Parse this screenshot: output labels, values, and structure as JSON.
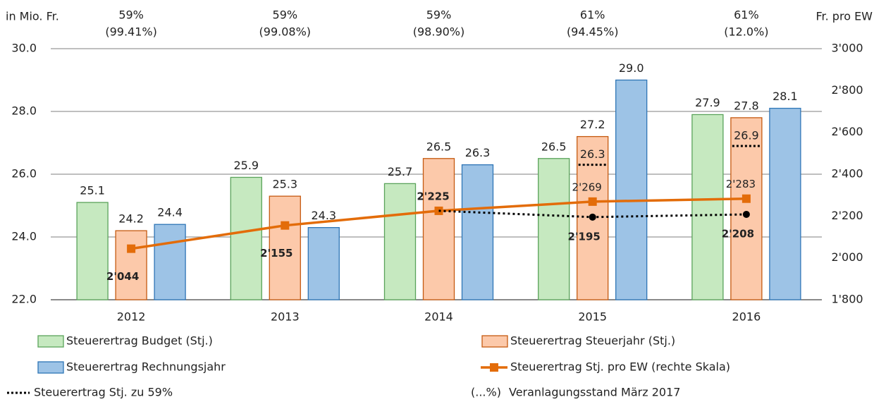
{
  "chart_data": {
    "type": "bar",
    "y_label": "in Mio. Fr.",
    "y2_label": "Fr. pro EW",
    "categories": [
      "2012",
      "2013",
      "2014",
      "2015",
      "2016"
    ],
    "annotations": [
      [
        "59%",
        "(99.41%)"
      ],
      [
        "59%",
        "(99.08%)"
      ],
      [
        "59%",
        "(98.90%)"
      ],
      [
        "61%",
        "(94.45%)"
      ],
      [
        "61%",
        "(12.0%)"
      ]
    ],
    "ylim": [
      22,
      30
    ],
    "yticks": [
      {
        "value": 22,
        "label": "22.0"
      },
      {
        "value": 24,
        "label": "24.0"
      },
      {
        "value": 26,
        "label": "26.0"
      },
      {
        "value": 28,
        "label": "28.0"
      },
      {
        "value": 30,
        "label": "30.0"
      }
    ],
    "y2lim": [
      1800,
      3000
    ],
    "y2ticks": [
      {
        "value": 1800,
        "label": "1'800"
      },
      {
        "value": 2000,
        "label": "2'000"
      },
      {
        "value": 2200,
        "label": "2'200"
      },
      {
        "value": 2400,
        "label": "2'400"
      },
      {
        "value": 2600,
        "label": "2'600"
      },
      {
        "value": 2800,
        "label": "2'800"
      },
      {
        "value": 3000,
        "label": "3'000"
      }
    ],
    "grid": true,
    "series": [
      {
        "name": "Steuerertrag Budget (Stj.)",
        "type": "bar",
        "color": "#c6e9c0",
        "edge": "#5aa35a",
        "values": [
          25.1,
          25.9,
          25.7,
          26.5,
          27.9
        ]
      },
      {
        "name": "Steuerertrag Steuerjahr (Stj.)",
        "type": "bar",
        "color": "#fcc9aa",
        "edge": "#c55a11",
        "values": [
          24.2,
          25.3,
          26.5,
          27.2,
          27.8
        ]
      },
      {
        "name": "Steuerertrag Rechnungsjahr",
        "type": "bar",
        "color": "#9dc3e6",
        "edge": "#2e75b6",
        "values": [
          24.4,
          24.3,
          26.3,
          29.0,
          28.1
        ],
        "value_labels": [
          "24.4",
          "24.3",
          "26.3",
          "29.0",
          "28.1"
        ]
      },
      {
        "name": "Steuerertrag Stj. pro EW (rechte Skala)",
        "type": "line",
        "axis": "y2",
        "color": "#e36c09",
        "values": [
          2044,
          2155,
          2225,
          2269,
          2283
        ],
        "value_labels": [
          "2'044",
          "2'155",
          "2'225",
          "2'269",
          "2'283"
        ]
      },
      {
        "name": "Steuerertrag Stj. zu 59%",
        "type": "dotted",
        "axis": "y2",
        "color": "#000000",
        "values": [
          null,
          null,
          2225,
          2195,
          2208
        ],
        "value_labels": [
          null,
          null,
          null,
          "2'195",
          "2'208"
        ],
        "bar_values": [
          null,
          null,
          null,
          26.3,
          26.9
        ]
      }
    ],
    "note": {
      "symbol": "(...%)",
      "text": "Veranlagungsstand März 2017"
    }
  }
}
